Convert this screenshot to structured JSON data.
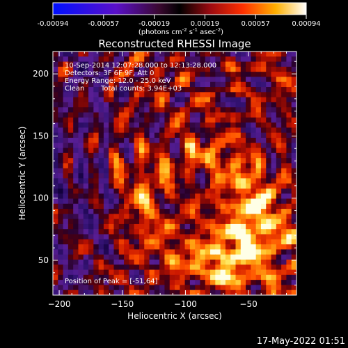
{
  "chart_data": {
    "type": "heatmap",
    "title": "Reconstructed RHESSI Image",
    "xlabel": "Heliocentric X (arcsec)",
    "ylabel": "Heliocentric Y (arcsec)",
    "xlim": [
      -205,
      -12
    ],
    "ylim": [
      22,
      218
    ],
    "x_ticks": [
      -200,
      -150,
      -100,
      -50
    ],
    "y_ticks": [
      50,
      100,
      150,
      200
    ],
    "colorbar": {
      "unit_label_parts": [
        "(photons cm",
        "-2",
        " s",
        "-1",
        " asec",
        "-2",
        ")"
      ],
      "ticks": [
        "-0.00094",
        "-0.00057",
        "-0.00019",
        "0.00019",
        "0.00057",
        "0.00094"
      ],
      "range": [
        -0.00094,
        0.00094
      ]
    },
    "annotations": {
      "time_range": "10-Sep-2014 12:07:28.000 to 12:13:28.000",
      "detectors": "Detectors: 3F 6F 9F, Att 0",
      "energy_range": "Energy Range: 12.0 - 25.0 keV",
      "method": "Clean",
      "total_counts": "Total counts: 3.94E+03",
      "peak_position": "Position of Peak = [-51,64]"
    },
    "peak": [
      -51,
      64
    ],
    "colormap": "black-purple-red-orange-yellow-white"
  },
  "footer": {
    "date": "17-May-2022 01:51"
  }
}
